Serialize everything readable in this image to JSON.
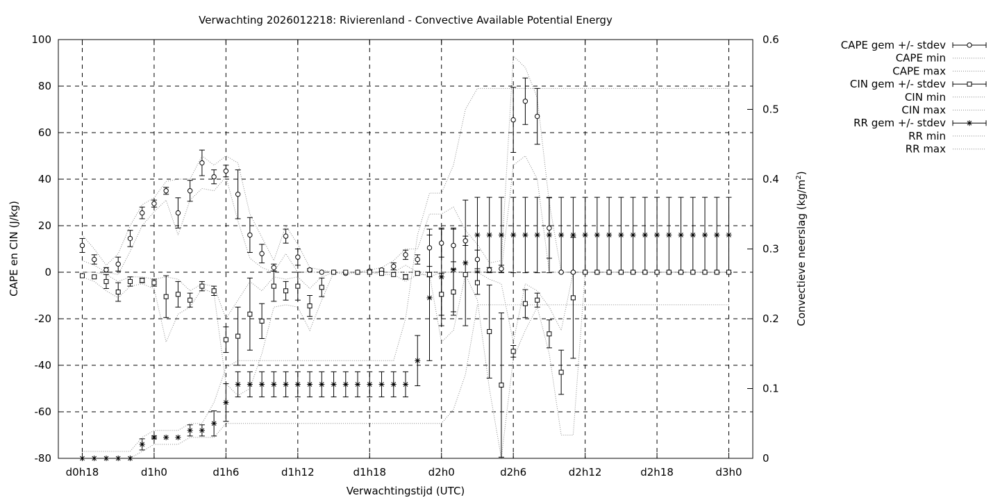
{
  "chart_data": {
    "type": "line",
    "title": "Verwachting 2026012218: Rivierenland - Convective Available Potential Energy",
    "xlabel": "Verwachtingstijd (UTC)",
    "ylabel": "CAPE en CIN (J/kg)",
    "y2label_main": "Convectieve neerslag (kg/m",
    "y2label_sup": "2",
    "y2label_end": ")",
    "x_hours": [
      18,
      19,
      20,
      21,
      22,
      23,
      24,
      25,
      26,
      27,
      28,
      29,
      30,
      31,
      32,
      33,
      34,
      35,
      36,
      37,
      38,
      39,
      40,
      41,
      42,
      43,
      44,
      45,
      46,
      47,
      48,
      49,
      50,
      51,
      52,
      53,
      54,
      55,
      56,
      57,
      58,
      59,
      60,
      61,
      62,
      63,
      64,
      65,
      66,
      67,
      68,
      69,
      70,
      71,
      72
    ],
    "xlim": [
      16,
      74
    ],
    "ylim": [
      -80,
      100
    ],
    "y2lim": [
      0,
      0.6
    ],
    "x_ticks": [
      {
        "hour": 18,
        "label": "d0h18"
      },
      {
        "hour": 24,
        "label": "d1h0"
      },
      {
        "hour": 30,
        "label": "d1h6"
      },
      {
        "hour": 36,
        "label": "d1h12"
      },
      {
        "hour": 42,
        "label": "d1h18"
      },
      {
        "hour": 48,
        "label": "d2h0"
      },
      {
        "hour": 54,
        "label": "d2h6"
      },
      {
        "hour": 60,
        "label": "d2h12"
      },
      {
        "hour": 66,
        "label": "d2h18"
      },
      {
        "hour": 72,
        "label": "d3h0"
      }
    ],
    "y_ticks": [
      {
        "value": -80,
        "label": "-80"
      },
      {
        "value": -60,
        "label": "-60"
      },
      {
        "value": -40,
        "label": "-40"
      },
      {
        "value": -20,
        "label": "-20"
      },
      {
        "value": 0,
        "label": "0"
      },
      {
        "value": 20,
        "label": "20"
      },
      {
        "value": 40,
        "label": "40"
      },
      {
        "value": 60,
        "label": "60"
      },
      {
        "value": 80,
        "label": "80"
      },
      {
        "value": 100,
        "label": "100"
      }
    ],
    "y2_ticks": [
      {
        "value": 0,
        "label": "0"
      },
      {
        "value": 0.1,
        "label": "0.1"
      },
      {
        "value": 0.2,
        "label": "0.2"
      },
      {
        "value": 0.3,
        "label": "0.3"
      },
      {
        "value": 0.4,
        "label": "0.4"
      },
      {
        "value": 0.5,
        "label": "0.5"
      },
      {
        "value": 0.6,
        "label": "0.6"
      }
    ],
    "grid": true,
    "legend_position": "right, outside plot",
    "series": [
      {
        "name": "CAPE gem +/- stdev",
        "axis": "y1",
        "marker": "circle",
        "mean": [
          11.5,
          5.5,
          1,
          3.5,
          14.5,
          25.5,
          29.5,
          35,
          25.5,
          35,
          47,
          41,
          43.5,
          33.5,
          16,
          8,
          2,
          15.5,
          6.5,
          1,
          0,
          0,
          -0.5,
          0,
          0.5,
          1,
          2.5,
          7.5,
          5.5,
          10.5,
          12.5,
          11.5,
          13.5,
          5.5,
          1,
          1.5,
          65.5,
          73.5,
          67,
          19,
          0,
          0,
          0,
          0,
          0,
          0,
          0,
          0,
          0,
          0,
          0,
          0,
          0,
          0,
          0
        ],
        "stdev": [
          3,
          2,
          1,
          3,
          3.5,
          2.5,
          1.5,
          1.5,
          6.5,
          4.5,
          5.5,
          3,
          2.5,
          10.5,
          7.5,
          4,
          1.5,
          3,
          3.5,
          0.5,
          0,
          0,
          0,
          0,
          0.5,
          0.5,
          1.5,
          2,
          2,
          8,
          6,
          7,
          2,
          4,
          1,
          1.5,
          14,
          10,
          12,
          13,
          0,
          0,
          0,
          0,
          0,
          0,
          0,
          0,
          0,
          0,
          0,
          0,
          0,
          0,
          0
        ]
      },
      {
        "name": "CAPE min",
        "axis": "y1",
        "line": "dotted",
        "values": [
          5,
          3,
          0,
          -1,
          9,
          20,
          26,
          31,
          16,
          31,
          36,
          35,
          41,
          22,
          6,
          2,
          0,
          8,
          0,
          0,
          0,
          0,
          -1,
          0,
          0,
          0,
          0,
          3,
          0,
          -2,
          0,
          0,
          0,
          0,
          0,
          0,
          46,
          50,
          40,
          0,
          0,
          0,
          0,
          0,
          0,
          0,
          0,
          0,
          0,
          0,
          0,
          0,
          0,
          0,
          0
        ]
      },
      {
        "name": "CAPE max",
        "axis": "y1",
        "line": "dotted",
        "values": [
          16,
          10,
          3,
          8,
          20,
          29,
          32,
          39,
          40,
          40,
          50,
          46,
          50,
          47,
          25,
          15,
          5,
          20,
          12,
          2,
          1,
          0,
          0,
          0,
          1,
          2,
          5,
          10,
          10,
          25,
          25,
          28,
          18,
          12,
          4,
          5,
          93,
          88,
          75,
          30,
          0,
          0,
          0,
          0,
          0,
          0,
          0,
          0,
          0,
          0,
          0,
          0,
          0,
          0,
          0
        ]
      },
      {
        "name": "CIN gem +/- stdev",
        "axis": "y1",
        "marker": "square",
        "mean": [
          -1.5,
          -2,
          -4,
          -8.5,
          -4,
          -3.5,
          -4.5,
          -10.5,
          -9.5,
          -12,
          -6,
          -8,
          -29,
          -27.5,
          -18,
          -21,
          -6,
          -8,
          -6,
          -14.5,
          -6.5,
          0,
          0,
          0,
          0,
          -0.5,
          -1,
          -2,
          -0.5,
          -1,
          -9.5,
          -8.5,
          -1,
          -4.5,
          -25.5,
          -48.5,
          -34,
          -13.5,
          -12,
          -26.5,
          -43,
          -11,
          0,
          0,
          0,
          0,
          0,
          0,
          0,
          0,
          0,
          0,
          0,
          0,
          0
        ],
        "stdev": [
          0,
          0,
          3,
          4,
          2,
          1,
          1.5,
          9,
          5.5,
          3,
          2,
          2,
          5.5,
          12.5,
          15.5,
          7.5,
          6.5,
          4,
          6,
          4.5,
          4,
          0,
          0,
          0,
          0,
          0,
          0,
          1,
          0,
          1,
          9,
          10,
          0,
          5,
          20,
          31,
          2.5,
          6,
          3,
          6,
          9.5,
          26,
          0,
          0,
          0,
          0,
          0,
          0,
          0,
          0,
          0,
          0,
          0,
          0,
          0
        ]
      },
      {
        "name": "CIN min",
        "axis": "y1",
        "line": "dotted",
        "values": [
          -2,
          -4,
          -8,
          -11,
          -6,
          -5,
          -7,
          -30,
          -18,
          -15,
          -7,
          -9,
          -48,
          -53,
          -50,
          -35,
          -15,
          -14,
          -15,
          -25,
          -12,
          0,
          0,
          0,
          0,
          -1,
          -1,
          -4,
          -1,
          -1,
          -30,
          -25,
          -1,
          -12,
          -50,
          -80,
          -37,
          -25,
          -15,
          -35,
          -70,
          -70,
          0,
          0,
          0,
          0,
          0,
          0,
          0,
          0,
          0,
          0,
          0,
          0,
          0
        ]
      },
      {
        "name": "CIN max",
        "axis": "y1",
        "line": "dotted",
        "values": [
          0,
          0,
          -1,
          -4,
          -2,
          -2,
          -3,
          -2,
          -3,
          -8,
          -5,
          -6,
          -20,
          -12,
          -4,
          -8,
          -2,
          -3,
          -2,
          -7,
          -2,
          0,
          0,
          0,
          0,
          0,
          0,
          0,
          0,
          0,
          0,
          0,
          0,
          0,
          -3,
          -5,
          -30,
          -5,
          -8,
          -15,
          -25,
          0,
          0,
          0,
          0,
          0,
          0,
          0,
          0,
          0,
          0,
          0,
          0,
          0,
          0
        ]
      },
      {
        "name": "RR gem +/- stdev",
        "axis": "y2",
        "marker": "star",
        "mean": [
          0,
          0,
          0,
          0,
          0,
          0.02,
          0.03,
          0.03,
          0.03,
          0.04,
          0.04,
          0.05,
          0.08,
          0.106,
          0.106,
          0.106,
          0.106,
          0.106,
          0.106,
          0.106,
          0.106,
          0.106,
          0.106,
          0.106,
          0.106,
          0.106,
          0.106,
          0.106,
          0.14,
          0.23,
          0.26,
          0.27,
          0.28,
          0.32,
          0.32,
          0.32,
          0.32,
          0.32,
          0.32,
          0.32,
          0.32,
          0.32,
          0.32,
          0.32,
          0.32,
          0.32,
          0.32,
          0.32,
          0.32,
          0.32,
          0.32,
          0.32,
          0.32,
          0.32,
          0.32
        ],
        "stdev": [
          0,
          0,
          0,
          0,
          0,
          0.008,
          0.002,
          0,
          0,
          0.008,
          0.008,
          0.018,
          0.027,
          0.018,
          0.018,
          0.018,
          0.018,
          0.018,
          0.018,
          0.018,
          0.018,
          0.018,
          0.018,
          0.018,
          0.018,
          0.018,
          0.018,
          0.018,
          0.036,
          0.09,
          0.07,
          0.06,
          0.09,
          0.054,
          0.054,
          0.054,
          0.054,
          0.054,
          0.054,
          0.054,
          0.054,
          0.054,
          0.054,
          0.054,
          0.054,
          0.054,
          0.054,
          0.054,
          0.054,
          0.054,
          0.054,
          0.054,
          0.054,
          0.054,
          0.054
        ]
      },
      {
        "name": "RR min",
        "axis": "y2",
        "line": "dotted",
        "values": [
          0,
          0,
          0,
          0,
          0,
          0.01,
          0.02,
          0.02,
          0.02,
          0.03,
          0.03,
          0.03,
          0.05,
          0.05,
          0.05,
          0.05,
          0.05,
          0.05,
          0.05,
          0.05,
          0.05,
          0.05,
          0.05,
          0.05,
          0.05,
          0.05,
          0.05,
          0.05,
          0.05,
          0.05,
          0.05,
          0.07,
          0.12,
          0.22,
          0.22,
          0.22,
          0.22,
          0.22,
          0.22,
          0.22,
          0.22,
          0.22,
          0.22,
          0.22,
          0.22,
          0.22,
          0.22,
          0.22,
          0.22,
          0.22,
          0.22,
          0.22,
          0.22,
          0.22,
          0.22
        ]
      },
      {
        "name": "RR max",
        "axis": "y2",
        "line": "dotted",
        "values": [
          0.01,
          0.01,
          0.01,
          0.01,
          0.01,
          0.03,
          0.04,
          0.04,
          0.04,
          0.05,
          0.05,
          0.08,
          0.13,
          0.14,
          0.14,
          0.14,
          0.14,
          0.14,
          0.14,
          0.14,
          0.14,
          0.14,
          0.14,
          0.14,
          0.14,
          0.14,
          0.14,
          0.2,
          0.32,
          0.38,
          0.38,
          0.42,
          0.5,
          0.53,
          0.53,
          0.53,
          0.53,
          0.53,
          0.53,
          0.53,
          0.53,
          0.53,
          0.53,
          0.53,
          0.53,
          0.53,
          0.53,
          0.53,
          0.53,
          0.53,
          0.53,
          0.53,
          0.53,
          0.53,
          0.53
        ]
      }
    ]
  }
}
